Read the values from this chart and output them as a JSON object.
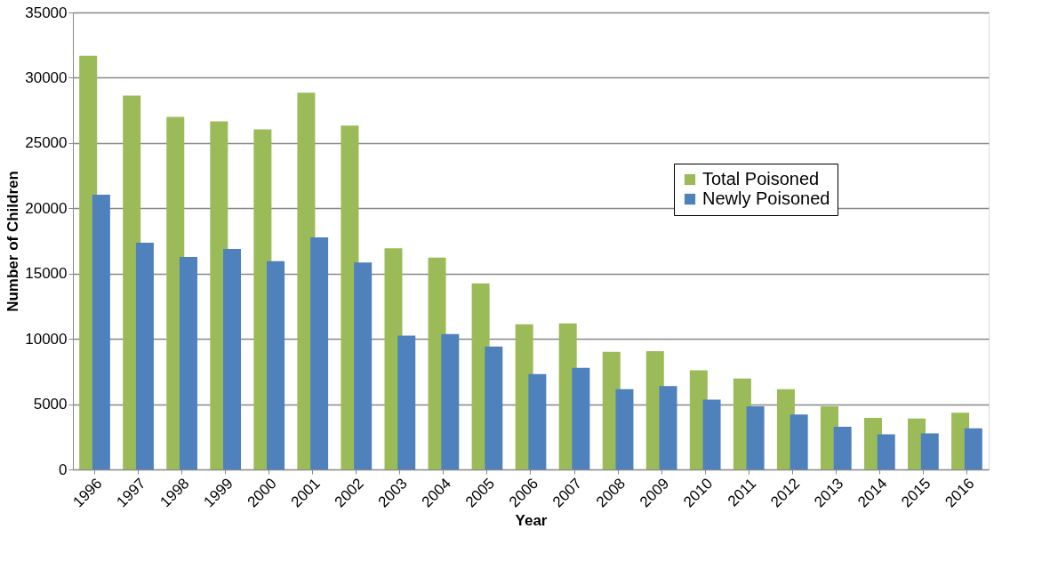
{
  "chart_data": {
    "type": "bar",
    "xlabel": "Year",
    "ylabel": "Number of Children",
    "categories": [
      "1996",
      "1997",
      "1998",
      "1999",
      "2000",
      "2001",
      "2002",
      "2003",
      "2004",
      "2005",
      "2006",
      "2007",
      "2008",
      "2009",
      "2010",
      "2011",
      "2012",
      "2013",
      "2014",
      "2015",
      "2016"
    ],
    "series": [
      {
        "name": "Total Poisoned",
        "color": "#9bbb59",
        "values": [
          31680,
          28640,
          27000,
          26660,
          26040,
          28850,
          26340,
          16940,
          16230,
          14250,
          11120,
          11180,
          9010,
          9050,
          7600,
          6960,
          6140,
          4840,
          3950,
          3900,
          4340
        ]
      },
      {
        "name": "Newly Poisoned",
        "color": "#4f81bd",
        "values": [
          21040,
          17370,
          16270,
          16890,
          15950,
          17770,
          15850,
          10250,
          10360,
          9410,
          7300,
          7780,
          6140,
          6390,
          5340,
          4840,
          4200,
          3260,
          2690,
          2760,
          3150
        ]
      }
    ],
    "ylim": [
      0,
      35000
    ],
    "yticks": [
      0,
      5000,
      10000,
      15000,
      20000,
      25000,
      30000,
      35000
    ],
    "grid": "y",
    "legend": "top right"
  }
}
